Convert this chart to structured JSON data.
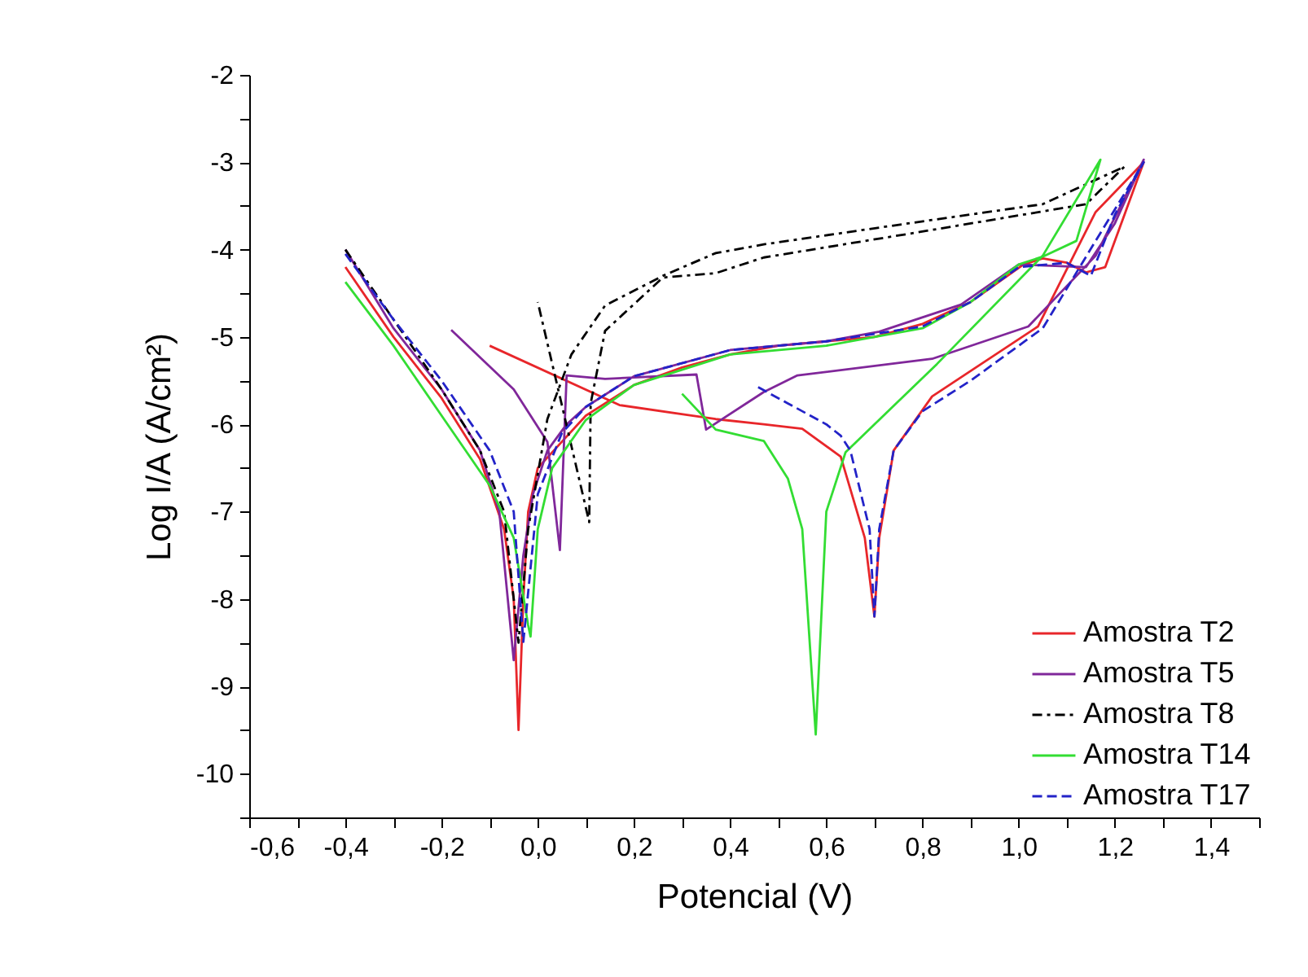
{
  "chart_data": {
    "type": "line",
    "xlabel": "Potencial (V)",
    "ylabel": "Log I/A (A/cm²)",
    "xlim": [
      -0.6,
      1.5
    ],
    "ylim": [
      -10.5,
      -2
    ],
    "xticks": [
      {
        "value": -0.6,
        "label": "-0,6"
      },
      {
        "value": -0.5,
        "label": null
      },
      {
        "value": -0.4,
        "label": "-0,4"
      },
      {
        "value": -0.3,
        "label": null
      },
      {
        "value": -0.2,
        "label": "-0,2"
      },
      {
        "value": -0.1,
        "label": null
      },
      {
        "value": 0,
        "label": "0,0"
      },
      {
        "value": 0.1,
        "label": null
      },
      {
        "value": 0.2,
        "label": "0,2"
      },
      {
        "value": 0.3,
        "label": null
      },
      {
        "value": 0.4,
        "label": "0,4"
      },
      {
        "value": 0.5,
        "label": null
      },
      {
        "value": 0.6,
        "label": "0,6"
      },
      {
        "value": 0.7,
        "label": null
      },
      {
        "value": 0.8,
        "label": "0,8"
      },
      {
        "value": 0.9,
        "label": null
      },
      {
        "value": 1.0,
        "label": "1,0"
      },
      {
        "value": 1.1,
        "label": null
      },
      {
        "value": 1.2,
        "label": "1,2"
      },
      {
        "value": 1.3,
        "label": null
      },
      {
        "value": 1.4,
        "label": "1,4"
      },
      {
        "value": 1.5,
        "label": null
      }
    ],
    "yticks": [
      {
        "value": -10.5,
        "label": null
      },
      -10,
      {
        "value": -9.5,
        "label": null
      },
      -9,
      {
        "value": -8.5,
        "label": null
      },
      -8,
      {
        "value": -7.5,
        "label": null
      },
      -7,
      {
        "value": -6.5,
        "label": null
      },
      -6,
      {
        "value": -5.5,
        "label": null
      },
      -5,
      {
        "value": -4.5,
        "label": null
      },
      -4,
      {
        "value": -3.5,
        "label": null
      },
      -3,
      {
        "value": -2.5,
        "label": null
      },
      -2
    ],
    "grid": false,
    "legend": "bottom right",
    "marker": "none",
    "series": [
      {
        "name": "Amostra T2",
        "color": "#e8262a",
        "line_style": "solid",
        "x": [
          -0.4,
          -0.3,
          -0.2,
          -0.12,
          -0.07,
          -0.05,
          -0.04,
          -0.03,
          -0.02,
          0.0,
          0.05,
          0.1,
          0.2,
          0.3,
          0.4,
          0.5,
          0.6,
          0.7,
          0.8,
          0.9,
          1.01,
          1.05,
          1.1,
          1.14,
          1.18,
          1.22,
          1.26,
          1.16,
          1.04,
          0.82,
          0.74,
          0.71,
          0.7,
          0.68,
          0.63,
          0.55,
          0.47,
          0.37,
          0.17,
          -0.1
        ],
        "values": [
          -4.2,
          -5.0,
          -5.7,
          -6.4,
          -7.2,
          -8.0,
          -9.5,
          -8.0,
          -7.0,
          -6.5,
          -6.2,
          -5.9,
          -5.55,
          -5.35,
          -5.2,
          -5.1,
          -5.05,
          -5.0,
          -4.85,
          -4.6,
          -4.17,
          -4.1,
          -4.15,
          -4.26,
          -4.2,
          -3.6,
          -3.0,
          -3.57,
          -4.88,
          -5.68,
          -6.3,
          -7.3,
          -8.2,
          -7.3,
          -6.37,
          -6.05,
          -6.0,
          -5.94,
          -5.78,
          -5.1
        ]
      },
      {
        "name": "Amostra T5",
        "color": "#80279a",
        "line_style": "solid",
        "x": [
          -0.4,
          -0.3,
          -0.2,
          -0.12,
          -0.08,
          -0.05,
          -0.03,
          -0.01,
          0.02,
          0.06,
          0.1,
          0.2,
          0.4,
          0.6,
          0.71,
          0.88,
          1.0,
          1.14,
          1.2,
          1.26,
          1.16,
          1.02,
          0.82,
          0.54,
          0.47,
          0.35,
          0.33,
          0.14,
          0.06,
          0.046,
          0.02,
          -0.05,
          -0.18
        ],
        "values": [
          -4.0,
          -4.9,
          -5.6,
          -6.3,
          -7.0,
          -8.7,
          -7.5,
          -6.8,
          -6.3,
          -6.0,
          -5.8,
          -5.45,
          -5.15,
          -5.05,
          -4.94,
          -4.63,
          -4.17,
          -4.2,
          -3.7,
          -2.97,
          -4.07,
          -4.88,
          -5.25,
          -5.44,
          -5.63,
          -6.06,
          -5.43,
          -5.48,
          -5.44,
          -7.44,
          -6.2,
          -5.6,
          -4.92
        ]
      },
      {
        "name": "Amostra T8",
        "color": "#000000",
        "line_style": "dashdot",
        "x": [
          -0.4,
          -0.3,
          -0.2,
          -0.12,
          -0.07,
          -0.04,
          -0.02,
          0.02,
          0.07,
          0.14,
          0.26,
          0.37,
          0.47,
          0.77,
          1.05,
          1.22,
          1.14,
          0.77,
          0.47,
          0.37,
          0.26,
          0.14,
          0.11,
          0.107,
          0.0
        ],
        "values": [
          -4.0,
          -4.8,
          -5.6,
          -6.3,
          -7.0,
          -8.5,
          -7.2,
          -5.94,
          -5.2,
          -4.64,
          -4.3,
          -4.04,
          -3.94,
          -3.7,
          -3.48,
          -3.05,
          -3.48,
          -3.82,
          -4.09,
          -4.27,
          -4.32,
          -4.93,
          -5.76,
          -7.12,
          -4.6
        ]
      },
      {
        "name": "Amostra T14",
        "color": "#33dd33",
        "line_style": "solid",
        "x": [
          -0.4,
          -0.3,
          -0.2,
          -0.1,
          -0.05,
          -0.02,
          -0.015,
          0.0,
          0.03,
          0.1,
          0.2,
          0.4,
          0.6,
          0.8,
          0.9,
          1.0,
          1.05,
          1.12,
          1.17,
          1.05,
          0.83,
          0.64,
          0.6,
          0.578,
          0.55,
          0.52,
          0.47,
          0.37,
          0.3
        ],
        "values": [
          -4.37,
          -5.1,
          -5.9,
          -6.7,
          -7.3,
          -8.3,
          -8.43,
          -7.2,
          -6.5,
          -5.95,
          -5.55,
          -5.2,
          -5.1,
          -4.9,
          -4.6,
          -4.17,
          -4.08,
          -3.9,
          -2.97,
          -4.07,
          -5.31,
          -6.32,
          -7.0,
          -9.55,
          -7.2,
          -6.62,
          -6.19,
          -6.06,
          -5.65
        ]
      },
      {
        "name": "Amostra T17",
        "color": "#2323c8",
        "line_style": "dashed",
        "x": [
          -0.4,
          -0.3,
          -0.2,
          -0.1,
          -0.05,
          -0.03,
          0.0,
          0.05,
          0.1,
          0.2,
          0.4,
          0.6,
          0.8,
          0.9,
          1.0,
          1.1,
          1.15,
          1.2,
          1.26,
          1.16,
          1.05,
          0.9,
          0.8,
          0.74,
          0.71,
          0.7,
          0.69,
          0.65,
          0.63,
          0.6,
          0.52,
          0.45
        ],
        "values": [
          -4.05,
          -4.8,
          -5.5,
          -6.3,
          -7.0,
          -8.49,
          -6.8,
          -6.1,
          -5.8,
          -5.45,
          -5.15,
          -5.05,
          -4.88,
          -4.6,
          -4.2,
          -4.15,
          -4.3,
          -3.6,
          -3.0,
          -3.9,
          -4.9,
          -5.5,
          -5.85,
          -6.3,
          -7.2,
          -8.2,
          -7.2,
          -6.3,
          -6.13,
          -6.0,
          -5.76,
          -5.55
        ]
      }
    ]
  }
}
